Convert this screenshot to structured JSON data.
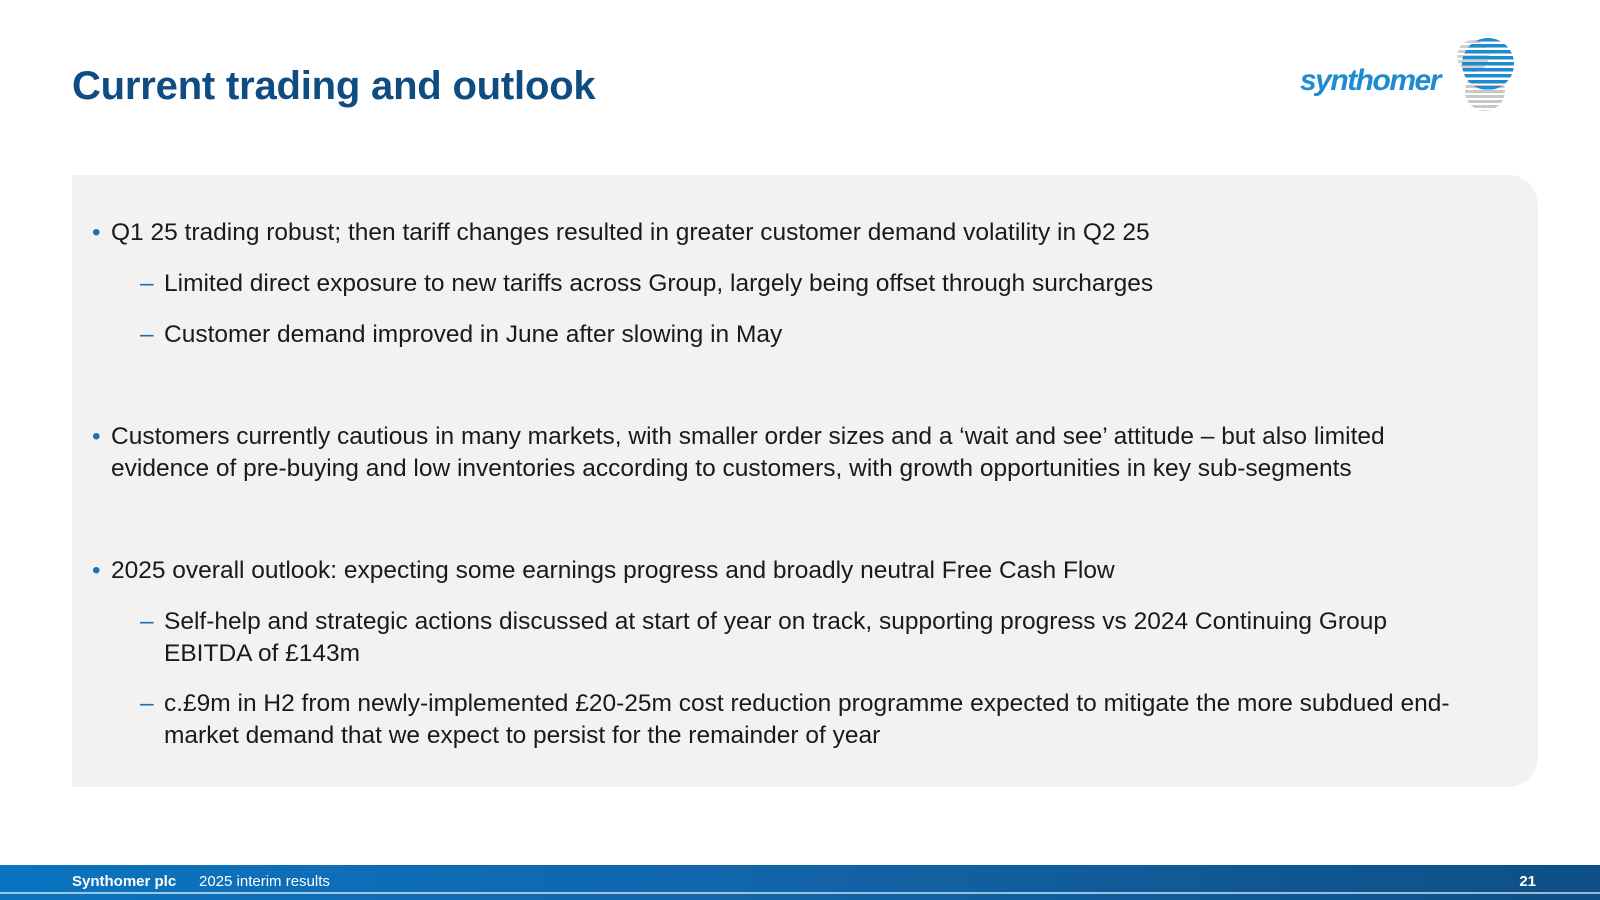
{
  "slide": {
    "title": "Current trading and outlook"
  },
  "logo": {
    "text": "synthomer",
    "icon": "synthomer-globe-logo"
  },
  "content": {
    "bullets": [
      {
        "text": "Q1 25 trading robust; then tariff changes resulted in greater customer demand volatility in Q2 25",
        "subs": [
          "Limited direct exposure to new tariffs across Group, largely being offset through surcharges",
          "Customer demand improved in June after slowing in May"
        ]
      },
      {
        "text": "Customers currently cautious in many markets, with smaller order sizes and a ‘wait and see’ attitude – but also limited evidence of pre-buying and low inventories according to customers, with growth opportunities in key sub-segments",
        "subs": []
      },
      {
        "text": "2025 overall outlook: expecting some earnings progress and broadly neutral Free Cash Flow",
        "subs": [
          "Self-help and strategic actions discussed at start of year on track, supporting progress vs 2024 Continuing Group EBITDA of £143m",
          "c.£9m in H2 from newly-implemented £20-25m cost reduction programme expected to mitigate the more subdued end-market demand that we expect to persist for the remainder of year"
        ]
      }
    ],
    "bullet_marker": "•",
    "sub_marker": "–"
  },
  "footer": {
    "company": "Synthomer plc",
    "subtitle": "2025 interim results",
    "page_number": "21"
  },
  "colors": {
    "title": "#0f4c81",
    "accent": "#1e8ad0",
    "panel": "#f2f2f2",
    "footer": "#1266ab"
  }
}
